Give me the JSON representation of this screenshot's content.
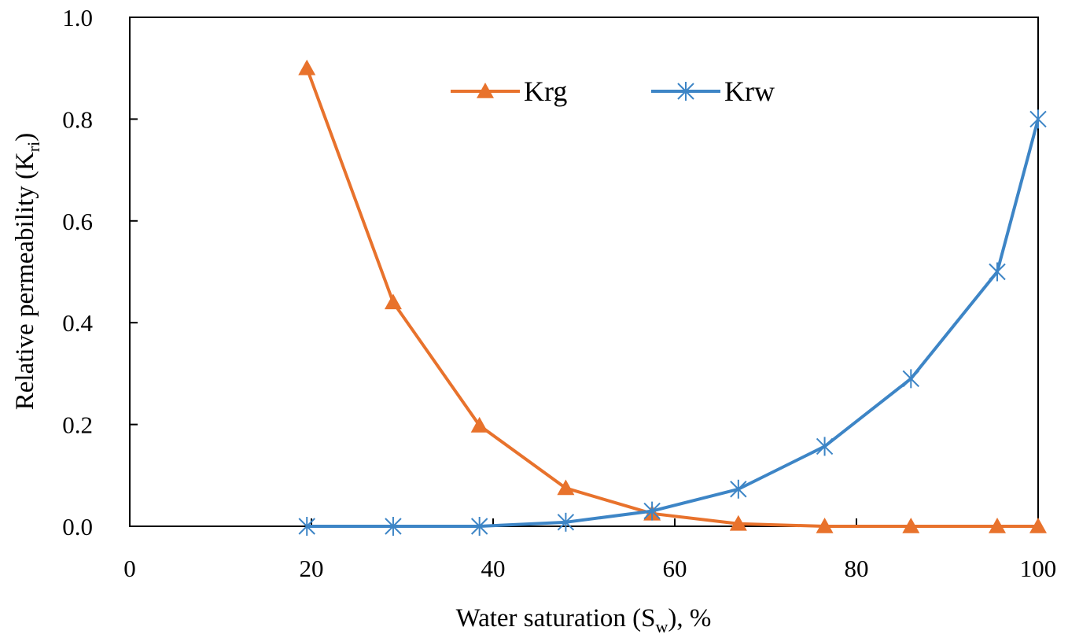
{
  "chart_data": {
    "type": "line",
    "title": "",
    "xlabel": "Water saturation (S_w), %",
    "ylabel": "Relative permeability (K_ri)",
    "xlim": [
      0,
      100
    ],
    "ylim": [
      0,
      1.0
    ],
    "xticks": [
      "0",
      "20",
      "40",
      "60",
      "80",
      "100"
    ],
    "yticks": [
      "0.0",
      "0.2",
      "0.4",
      "0.6",
      "0.8",
      "1.0"
    ],
    "grid": false,
    "legend_position": "top-center",
    "series": [
      {
        "name": "Krg",
        "color": "#E8722C",
        "marker": "triangle",
        "x": [
          19.5,
          29,
          38.5,
          48,
          57.5,
          67,
          76.5,
          86,
          95.5,
          100
        ],
        "y": [
          0.9,
          0.44,
          0.198,
          0.075,
          0.025,
          0.005,
          0.0,
          0.0,
          0.0,
          0.0
        ]
      },
      {
        "name": "Krw",
        "color": "#3D85C6",
        "marker": "asterisk",
        "x": [
          19.5,
          29,
          38.5,
          48,
          57.5,
          67,
          76.5,
          86,
          95.5,
          100
        ],
        "y": [
          0.0,
          0.0,
          0.0,
          0.008,
          0.03,
          0.073,
          0.157,
          0.29,
          0.5,
          0.8
        ]
      }
    ],
    "axis_labels": {
      "x_main": "Water saturation (S",
      "x_sub": "w",
      "x_tail": "), %",
      "y_main": "Relative permeability (K",
      "y_sub": "ri",
      "y_tail": ")"
    }
  }
}
